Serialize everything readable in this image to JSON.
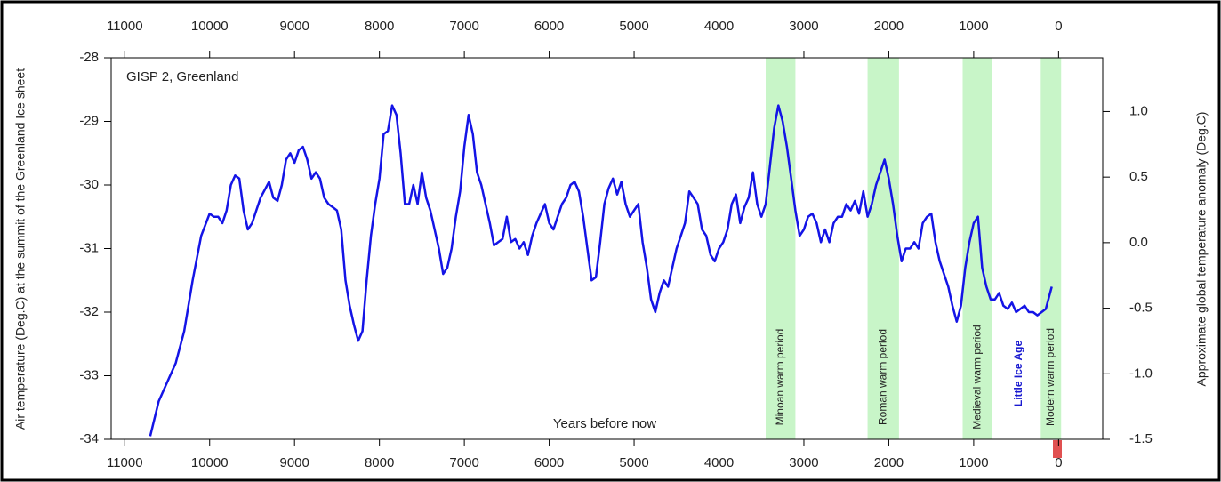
{
  "chart_data": {
    "type": "line",
    "annotation": "GISP 2, Greenland",
    "x_label": "Years before now",
    "y_label": "Air temperature (Deg.C) at the summit of the Greenland Ice sheet",
    "y2_label": "Approximate global temperature anomaly (Deg.C)",
    "little_ice_age_label": "Little Ice Age",
    "xlim": [
      11160,
      -520
    ],
    "xticks": [
      11000,
      10000,
      9000,
      8000,
      7000,
      6000,
      5000,
      4000,
      3000,
      2000,
      1000,
      0
    ],
    "ylim": [
      -34,
      -28
    ],
    "yticks": [
      -34,
      -33,
      -32,
      -31,
      -30,
      -29,
      -28
    ],
    "y2lim": [
      -1.5,
      1.41
    ],
    "y2ticks": [
      {
        "value": -1.5,
        "label": "-1.5"
      },
      {
        "value": -1.0,
        "label": "-1.0"
      },
      {
        "value": -0.5,
        "label": "-0.5"
      },
      {
        "value": 0.0,
        "label": "0.0"
      },
      {
        "value": 0.5,
        "label": "0.5"
      },
      {
        "value": 1.0,
        "label": "1.0"
      }
    ],
    "periods": [
      {
        "label": "Minoan warm period",
        "start": 3450,
        "end": 3100,
        "color": "#c8f5c8"
      },
      {
        "label": "Roman warm period",
        "start": 2250,
        "end": 1880,
        "color": "#c8f5c8"
      },
      {
        "label": "Medieval warm period",
        "start": 1130,
        "end": 780,
        "color": "#c8f5c8"
      },
      {
        "label": "Modern warm period",
        "start": 210,
        "end": -30,
        "color": "#c8f5c8"
      }
    ],
    "x": [
      10700,
      10600,
      10500,
      10400,
      10300,
      10200,
      10100,
      10000,
      9950,
      9900,
      9850,
      9800,
      9750,
      9700,
      9650,
      9600,
      9550,
      9500,
      9450,
      9400,
      9300,
      9250,
      9200,
      9150,
      9100,
      9050,
      9000,
      8950,
      8900,
      8850,
      8800,
      8750,
      8700,
      8650,
      8600,
      8550,
      8500,
      8450,
      8400,
      8350,
      8300,
      8250,
      8200,
      8150,
      8100,
      8050,
      8000,
      7950,
      7900,
      7850,
      7800,
      7750,
      7700,
      7650,
      7600,
      7550,
      7500,
      7450,
      7400,
      7350,
      7300,
      7250,
      7200,
      7150,
      7100,
      7050,
      7000,
      6950,
      6900,
      6850,
      6800,
      6750,
      6700,
      6650,
      6600,
      6550,
      6500,
      6450,
      6400,
      6350,
      6300,
      6250,
      6200,
      6150,
      6100,
      6050,
      6000,
      5950,
      5900,
      5850,
      5800,
      5750,
      5700,
      5650,
      5600,
      5550,
      5500,
      5450,
      5400,
      5350,
      5300,
      5250,
      5200,
      5150,
      5100,
      5050,
      5000,
      4950,
      4900,
      4850,
      4800,
      4750,
      4700,
      4650,
      4600,
      4550,
      4500,
      4450,
      4400,
      4350,
      4300,
      4250,
      4200,
      4150,
      4100,
      4050,
      4000,
      3950,
      3900,
      3850,
      3800,
      3750,
      3700,
      3650,
      3600,
      3550,
      3500,
      3450,
      3400,
      3350,
      3300,
      3250,
      3200,
      3150,
      3100,
      3050,
      3000,
      2950,
      2900,
      2850,
      2800,
      2750,
      2700,
      2650,
      2600,
      2550,
      2500,
      2450,
      2400,
      2350,
      2300,
      2250,
      2200,
      2150,
      2100,
      2050,
      2000,
      1950,
      1900,
      1850,
      1800,
      1750,
      1700,
      1650,
      1600,
      1550,
      1500,
      1450,
      1400,
      1350,
      1300,
      1250,
      1200,
      1150,
      1100,
      1050,
      1000,
      950,
      900,
      850,
      800,
      750,
      700,
      650,
      600,
      550,
      500,
      450,
      400,
      350,
      300,
      250,
      200,
      150,
      100,
      80
    ],
    "series": [
      {
        "name": "GISP 2",
        "color": "#1414e6",
        "values": [
          -33.95,
          -33.4,
          -33.1,
          -32.8,
          -32.3,
          -31.5,
          -30.8,
          -30.45,
          -30.5,
          -30.5,
          -30.6,
          -30.4,
          -30.0,
          -29.85,
          -29.9,
          -30.4,
          -30.7,
          -30.6,
          -30.4,
          -30.2,
          -29.95,
          -30.2,
          -30.25,
          -30.0,
          -29.6,
          -29.5,
          -29.65,
          -29.45,
          -29.4,
          -29.6,
          -29.9,
          -29.8,
          -29.9,
          -30.2,
          -30.3,
          -30.35,
          -30.4,
          -30.7,
          -31.5,
          -31.9,
          -32.2,
          -32.45,
          -32.3,
          -31.5,
          -30.8,
          -30.3,
          -29.9,
          -29.2,
          -29.15,
          -28.75,
          -28.9,
          -29.5,
          -30.3,
          -30.3,
          -30.0,
          -30.3,
          -29.8,
          -30.2,
          -30.4,
          -30.7,
          -31.0,
          -31.4,
          -31.3,
          -31.0,
          -30.5,
          -30.1,
          -29.4,
          -28.9,
          -29.2,
          -29.8,
          -30.0,
          -30.3,
          -30.6,
          -30.95,
          -30.9,
          -30.85,
          -30.5,
          -30.9,
          -30.85,
          -31.0,
          -30.9,
          -31.1,
          -30.8,
          -30.6,
          -30.45,
          -30.3,
          -30.6,
          -30.7,
          -30.5,
          -30.3,
          -30.2,
          -30.0,
          -29.95,
          -30.1,
          -30.5,
          -31.0,
          -31.5,
          -31.45,
          -30.9,
          -30.3,
          -30.05,
          -29.9,
          -30.15,
          -29.95,
          -30.3,
          -30.5,
          -30.4,
          -30.3,
          -30.9,
          -31.3,
          -31.8,
          -32.0,
          -31.7,
          -31.5,
          -31.6,
          -31.3,
          -31.0,
          -30.8,
          -30.6,
          -30.1,
          -30.2,
          -30.3,
          -30.7,
          -30.8,
          -31.1,
          -31.2,
          -31.0,
          -30.9,
          -30.7,
          -30.3,
          -30.15,
          -30.6,
          -30.35,
          -30.2,
          -29.8,
          -30.3,
          -30.5,
          -30.3,
          -29.7,
          -29.1,
          -28.75,
          -29.0,
          -29.4,
          -29.9,
          -30.4,
          -30.8,
          -30.7,
          -30.5,
          -30.45,
          -30.6,
          -30.9,
          -30.7,
          -30.9,
          -30.6,
          -30.5,
          -30.5,
          -30.3,
          -30.4,
          -30.25,
          -30.45,
          -30.1,
          -30.5,
          -30.3,
          -30.0,
          -29.8,
          -29.6,
          -29.9,
          -30.3,
          -30.8,
          -31.2,
          -31.0,
          -31.0,
          -30.9,
          -31.0,
          -30.6,
          -30.5,
          -30.45,
          -30.9,
          -31.2,
          -31.4,
          -31.6,
          -31.9,
          -32.15,
          -31.9,
          -31.3,
          -30.9,
          -30.6,
          -30.5,
          -31.3,
          -31.6,
          -31.8,
          -31.8,
          -31.7,
          -31.9,
          -31.95,
          -31.85,
          -32.0,
          -31.95,
          -31.9,
          -32.0,
          -32.0,
          -32.05,
          -32.0,
          -31.95,
          -31.7,
          -31.6
        ]
      }
    ]
  }
}
